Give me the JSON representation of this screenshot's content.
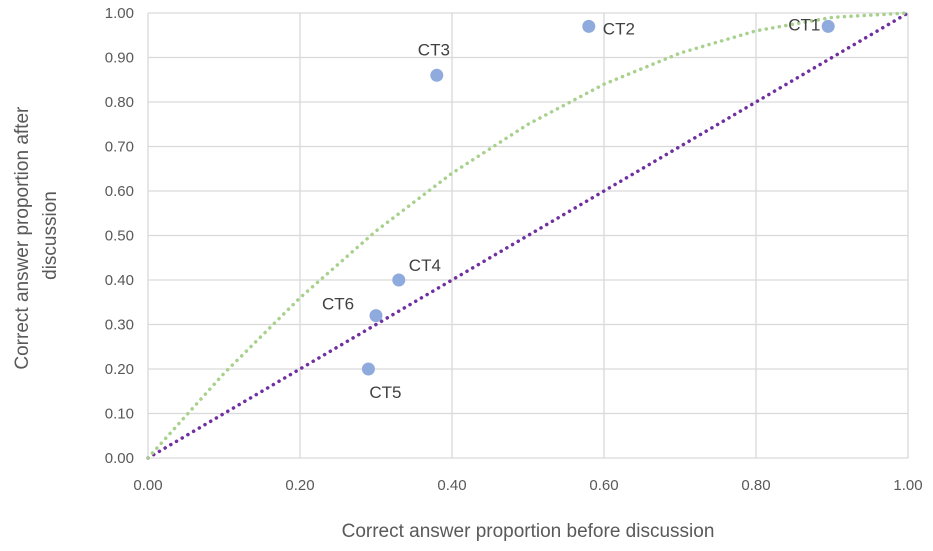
{
  "chart_data": {
    "type": "scatter",
    "title": "",
    "xlabel": "Correct answer proportion before discussion",
    "ylabel_lines": [
      "Correct answer proportion after",
      "discussion"
    ],
    "xlim": [
      0,
      1
    ],
    "ylim": [
      0,
      1
    ],
    "x_ticks": [
      "0.00",
      "0.20",
      "0.40",
      "0.60",
      "0.80",
      "1.00"
    ],
    "y_ticks": [
      "0.00",
      "0.10",
      "0.20",
      "0.30",
      "0.40",
      "0.50",
      "0.60",
      "0.70",
      "0.80",
      "0.90",
      "1.00"
    ],
    "grid": true,
    "legend": "none",
    "points": [
      {
        "label": "CT1",
        "x": 0.895,
        "y": 0.97
      },
      {
        "label": "CT2",
        "x": 0.58,
        "y": 0.97
      },
      {
        "label": "CT3",
        "x": 0.38,
        "y": 0.86
      },
      {
        "label": "CT4",
        "x": 0.33,
        "y": 0.4
      },
      {
        "label": "CT5",
        "x": 0.29,
        "y": 0.2
      },
      {
        "label": "CT6",
        "x": 0.3,
        "y": 0.32
      }
    ],
    "reference_lines": [
      {
        "kind": "identity",
        "color": "#7030a0",
        "style": "dotted"
      },
      {
        "kind": "curve",
        "color": "#a9d18e",
        "style": "dotted",
        "x": [
          0,
          0.1,
          0.2,
          0.3,
          0.4,
          0.5,
          0.6,
          0.7,
          0.8,
          0.9,
          1.0
        ],
        "y": [
          0,
          0.19,
          0.36,
          0.51,
          0.64,
          0.75,
          0.84,
          0.91,
          0.96,
          0.99,
          1.0
        ]
      }
    ],
    "point_color": "#8faadc"
  }
}
